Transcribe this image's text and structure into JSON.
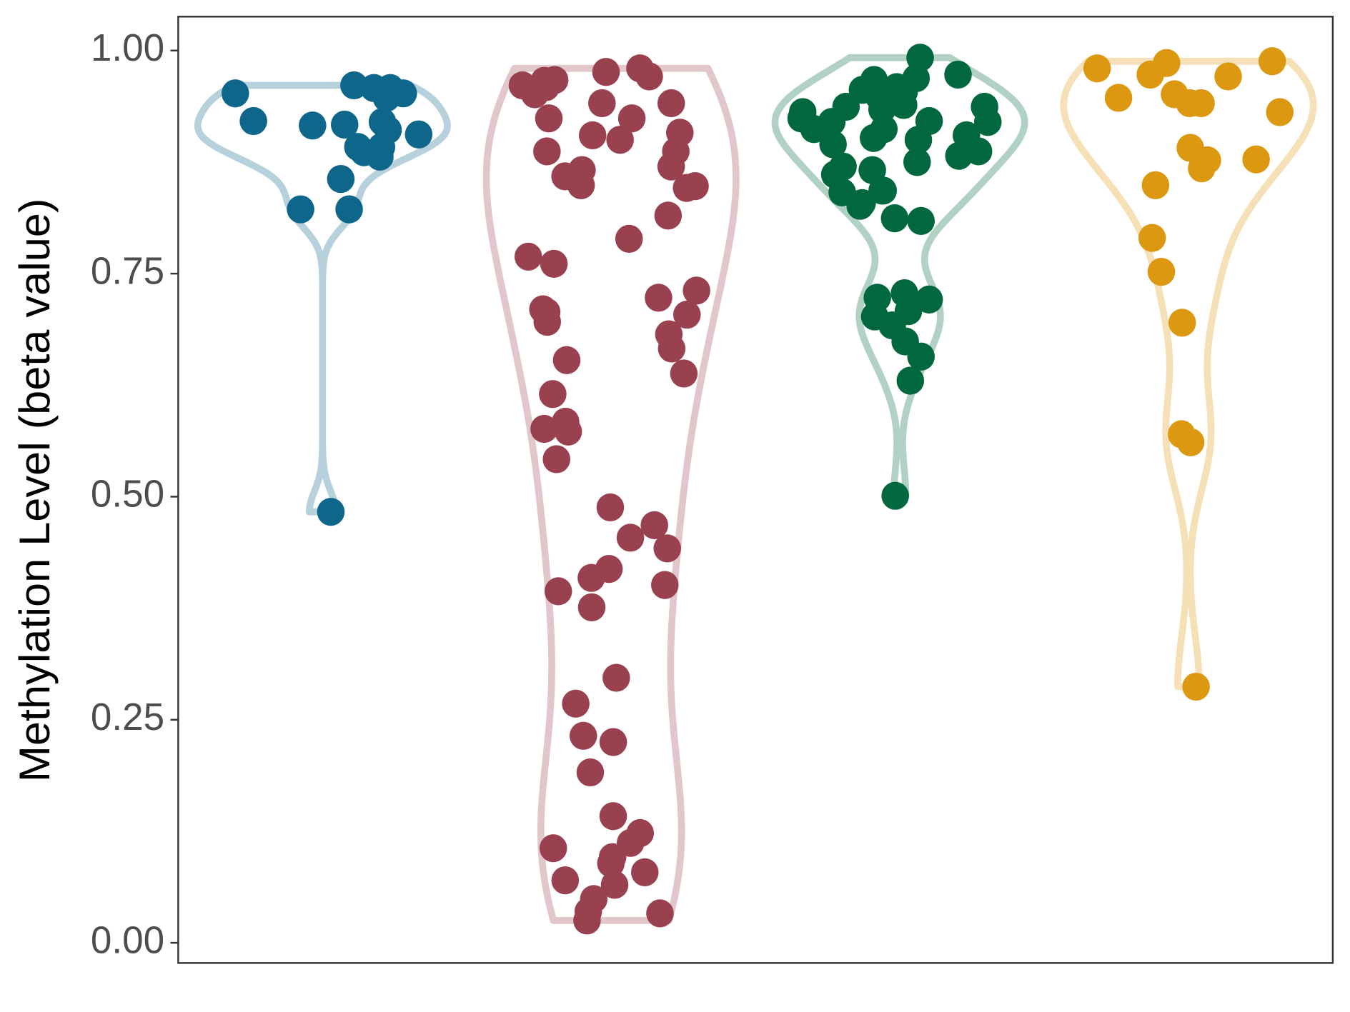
{
  "chart_data": {
    "type": "violin",
    "y_label": "Methylation Level (beta value)",
    "ylim": [
      -0.0226,
      1.038
    ],
    "yticks": [
      {
        "value": 0,
        "label": "0.00"
      },
      {
        "value": 0.25,
        "label": "0.25"
      },
      {
        "value": 0.5,
        "label": "0.50"
      },
      {
        "value": 0.75,
        "label": "0.75"
      },
      {
        "value": 1,
        "label": "1.00"
      }
    ],
    "series": [
      {
        "color": "#0e668b",
        "values": [
          0.952,
          0.961,
          0.958,
          0.952,
          0.958,
          0.947,
          0.917,
          0.892,
          0.911,
          0.921,
          0.906,
          0.886,
          0.92,
          0.916,
          0.892,
          0.881,
          0.856,
          0.822,
          0.822,
          0.483
        ]
      },
      {
        "color": "#9a4150",
        "values": [
          0.961,
          0.976,
          0.966,
          0.941,
          0.924,
          0.951,
          0.967,
          0.98,
          0.971,
          0.941,
          0.924,
          0.959,
          0.905,
          0.87,
          0.846,
          0.859,
          0.887,
          0.908,
          0.887,
          0.866,
          0.848,
          0.9,
          0.815,
          0.849,
          0.769,
          0.731,
          0.71,
          0.704,
          0.723,
          0.696,
          0.707,
          0.682,
          0.666,
          0.653,
          0.638,
          0.615,
          0.789,
          0.761,
          0.576,
          0.573,
          0.584,
          0.542,
          0.488,
          0.468,
          0.454,
          0.442,
          0.419,
          0.409,
          0.401,
          0.394,
          0.376,
          0.297,
          0.268,
          0.232,
          0.225,
          0.191,
          0.142,
          0.123,
          0.106,
          0.112,
          0.096,
          0.089,
          0.079,
          0.07,
          0.065,
          0.049,
          0.035,
          0.033,
          0.025
        ]
      },
      {
        "color": "#00673f",
        "values": [
          0.924,
          0.937,
          0.934,
          0.973,
          0.956,
          0.967,
          0.992,
          0.954,
          0.969,
          0.959,
          0.949,
          0.939,
          0.931,
          0.92,
          0.912,
          0.921,
          0.937,
          0.9,
          0.902,
          0.905,
          0.912,
          0.895,
          0.887,
          0.875,
          0.87,
          0.861,
          0.841,
          0.843,
          0.826,
          0.829,
          0.812,
          0.809,
          0.866,
          0.882,
          0.843,
          0.92,
          0.721,
          0.728,
          0.723,
          0.708,
          0.702,
          0.692,
          0.674,
          0.657,
          0.63,
          0.501
        ]
      },
      {
        "color": "#dd9811",
        "values": [
          0.98,
          0.988,
          0.971,
          0.951,
          0.931,
          0.941,
          0.973,
          0.986,
          0.941,
          0.947,
          0.868,
          0.878,
          0.877,
          0.891,
          0.849,
          0.79,
          0.752,
          0.695,
          0.561,
          0.57,
          0.287
        ]
      }
    ]
  }
}
